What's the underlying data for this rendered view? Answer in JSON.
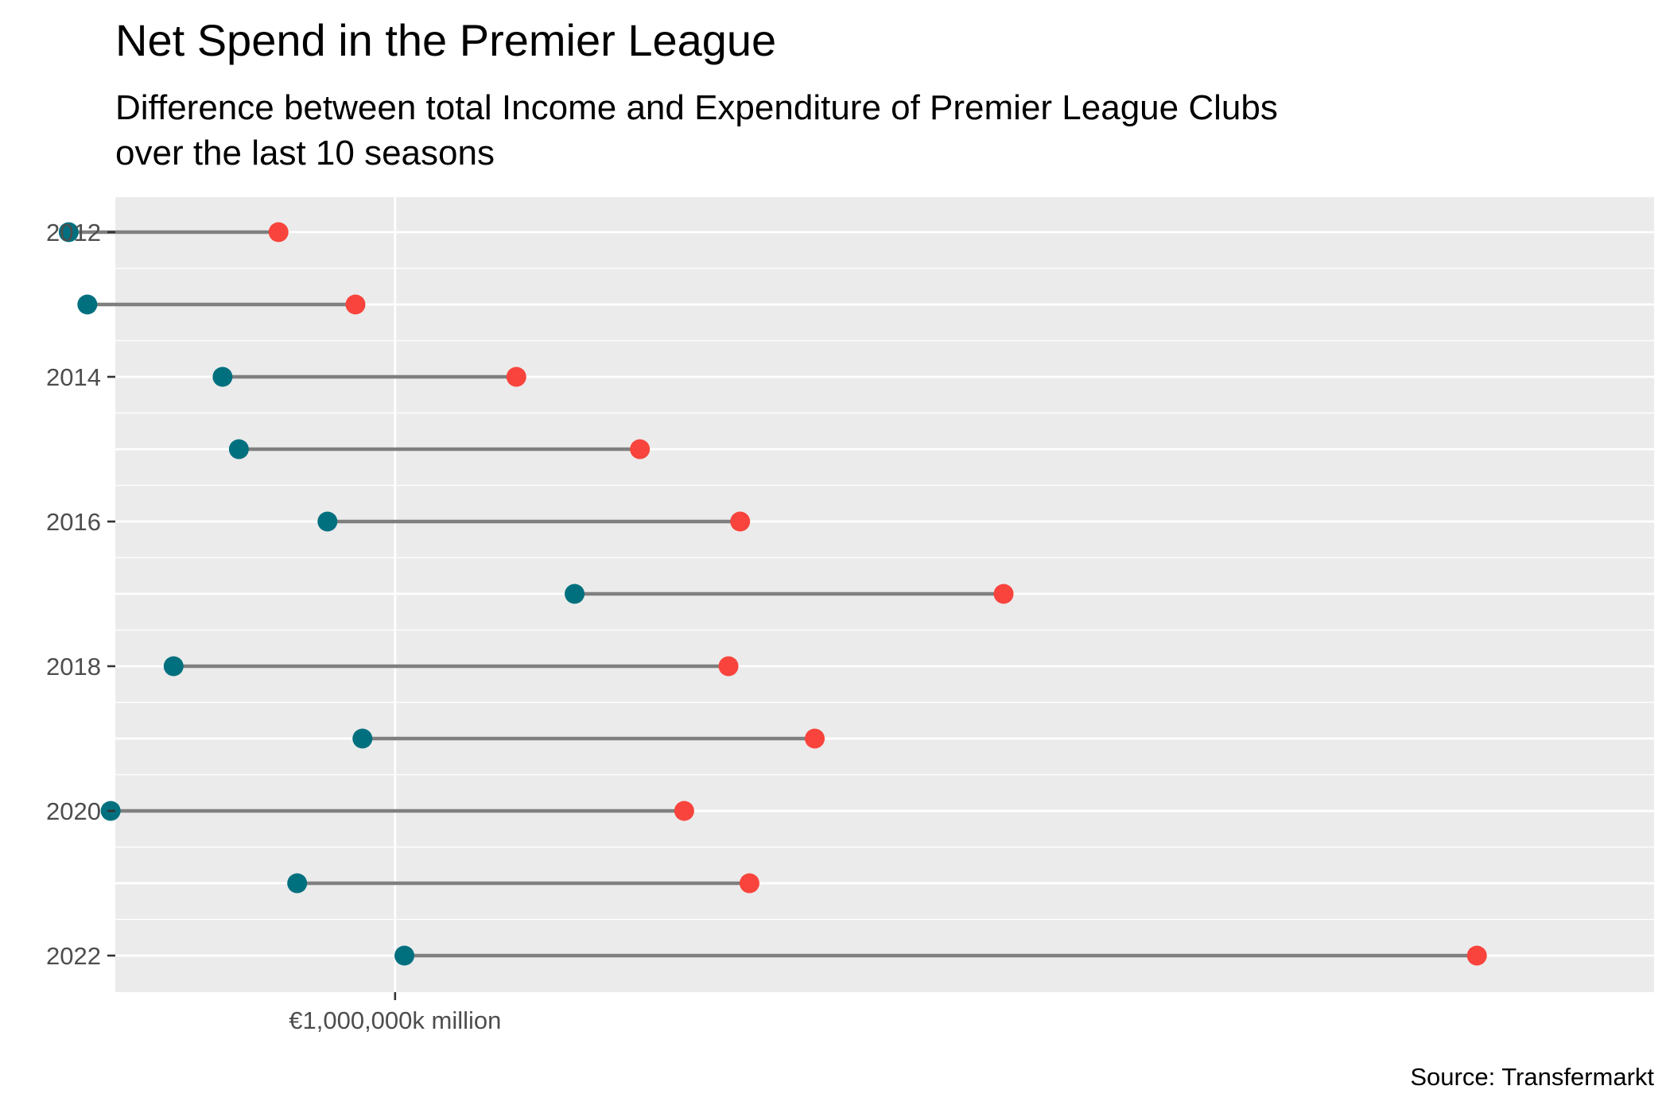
{
  "chart_data": {
    "type": "dumbbell",
    "title": "Net Spend in the Premier League",
    "subtitle_lines": [
      "Difference between total Income and Expenditure of Premier League Clubs",
      "over the last 10 seasons"
    ],
    "caption": "Source: Transfermarkt",
    "x_tick_label": "€1,000,000k million",
    "y_tick_labels": [
      "2012",
      "2014",
      "2016",
      "2018",
      "2020",
      "2022"
    ],
    "grid": true,
    "legend": "none",
    "colors": {
      "income": "#00707f",
      "expenditure": "#f8443c",
      "segment": "#7f7f7f",
      "panel": "#ebebeb",
      "grid": "#ffffff"
    },
    "xlim": [
      -0.6,
      2.7
    ],
    "x_tick_value": 0,
    "rows": [
      {
        "year": 2012,
        "income": -0.7,
        "expenditure": -0.25
      },
      {
        "year": 2013,
        "income": -0.66,
        "expenditure": -0.085
      },
      {
        "year": 2014,
        "income": -0.37,
        "expenditure": 0.26
      },
      {
        "year": 2015,
        "income": -0.335,
        "expenditure": 0.525
      },
      {
        "year": 2016,
        "income": -0.145,
        "expenditure": 0.74
      },
      {
        "year": 2017,
        "income": 0.385,
        "expenditure": 1.305
      },
      {
        "year": 2018,
        "income": -0.475,
        "expenditure": 0.715
      },
      {
        "year": 2019,
        "income": -0.07,
        "expenditure": 0.9
      },
      {
        "year": 2020,
        "income": -0.61,
        "expenditure": 0.62
      },
      {
        "year": 2021,
        "income": -0.21,
        "expenditure": 0.76
      },
      {
        "year": 2022,
        "income": 0.02,
        "expenditure": 2.32
      }
    ]
  }
}
